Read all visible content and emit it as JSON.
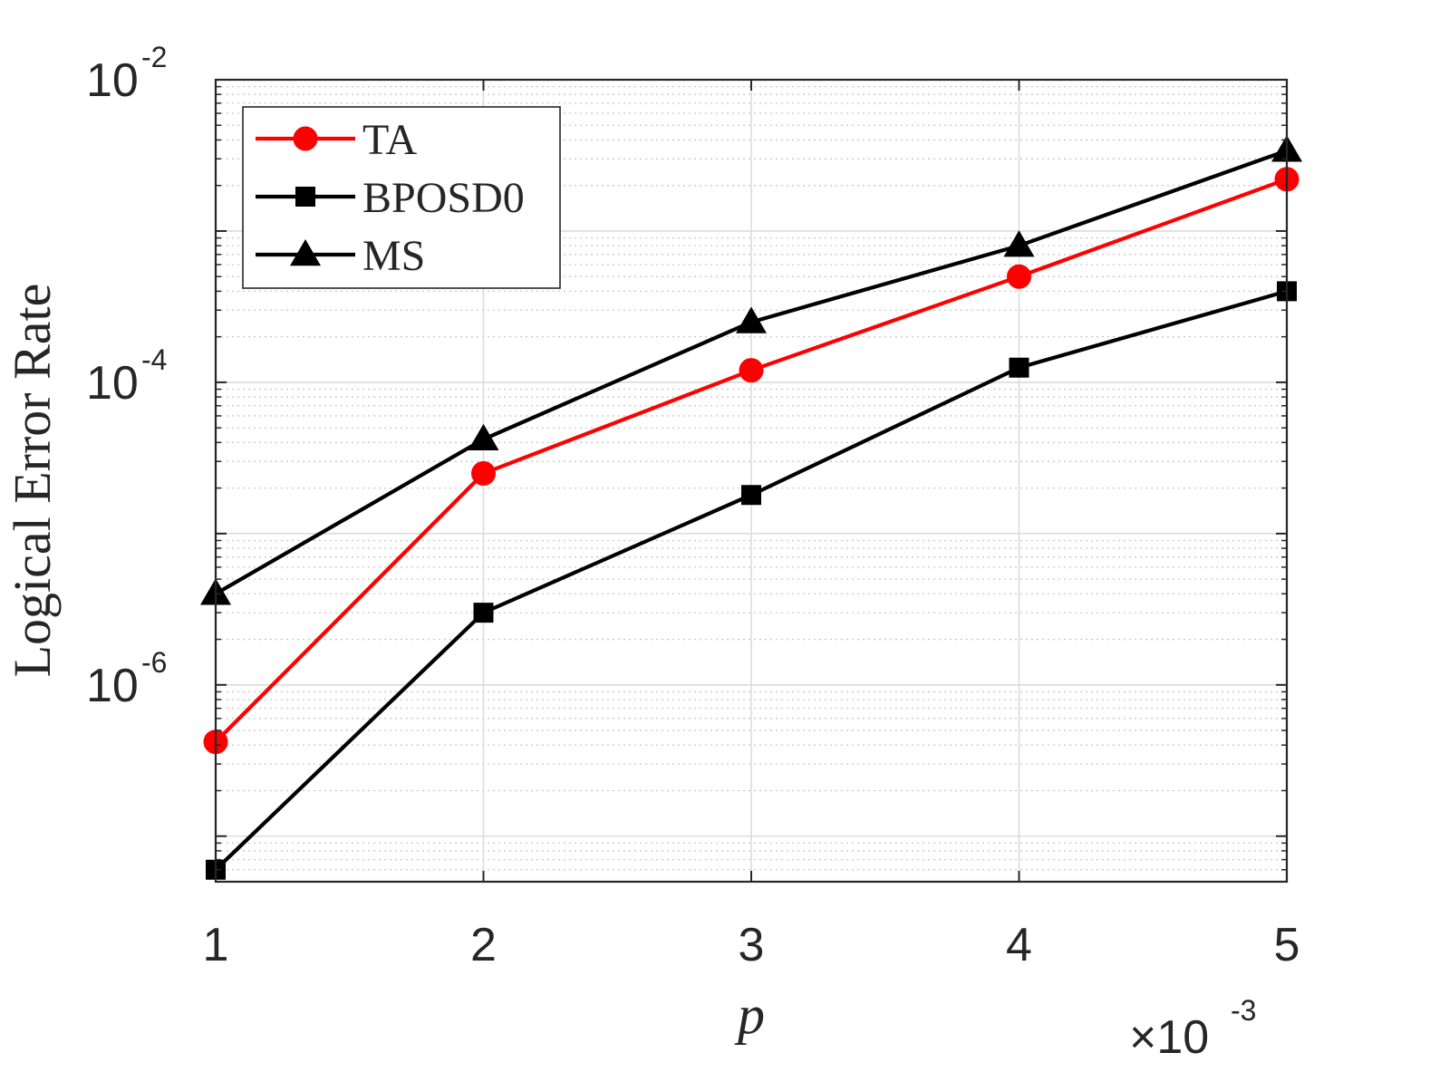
{
  "chart_data": {
    "type": "line",
    "xlabel": "p",
    "ylabel": "Logical Error Rate",
    "x_scale_label": "×10",
    "x_scale_exponent": "-3",
    "x": [
      1,
      2,
      3,
      4,
      5
    ],
    "x_ticks": [
      {
        "value": 1,
        "label": "1"
      },
      {
        "value": 2,
        "label": "2"
      },
      {
        "value": 3,
        "label": "3"
      },
      {
        "value": 4,
        "label": "4"
      },
      {
        "value": 5,
        "label": "5"
      }
    ],
    "xlim": [
      1,
      5
    ],
    "y_scale": "log",
    "ylim": [
      5e-08,
      0.01
    ],
    "y_ticks": [
      {
        "value": 0.01,
        "base": "10",
        "exponent": "-2"
      },
      {
        "value": 0.0001,
        "base": "10",
        "exponent": "-4"
      },
      {
        "value": 1e-06,
        "base": "10",
        "exponent": "-6"
      }
    ],
    "grid": true,
    "legend_position": "top-left",
    "series": [
      {
        "name": "TA",
        "color": "#ff0000",
        "marker": "circle",
        "values": [
          4.2e-07,
          2.5e-05,
          0.00012,
          0.0005,
          0.0022
        ]
      },
      {
        "name": "BPOSD0",
        "color": "#000000",
        "marker": "square",
        "values": [
          6e-08,
          3e-06,
          1.8e-05,
          0.000125,
          0.0004
        ]
      },
      {
        "name": "MS",
        "color": "#000000",
        "marker": "triangle",
        "values": [
          4e-06,
          4.2e-05,
          0.00025,
          0.0008,
          0.0034
        ]
      }
    ]
  }
}
